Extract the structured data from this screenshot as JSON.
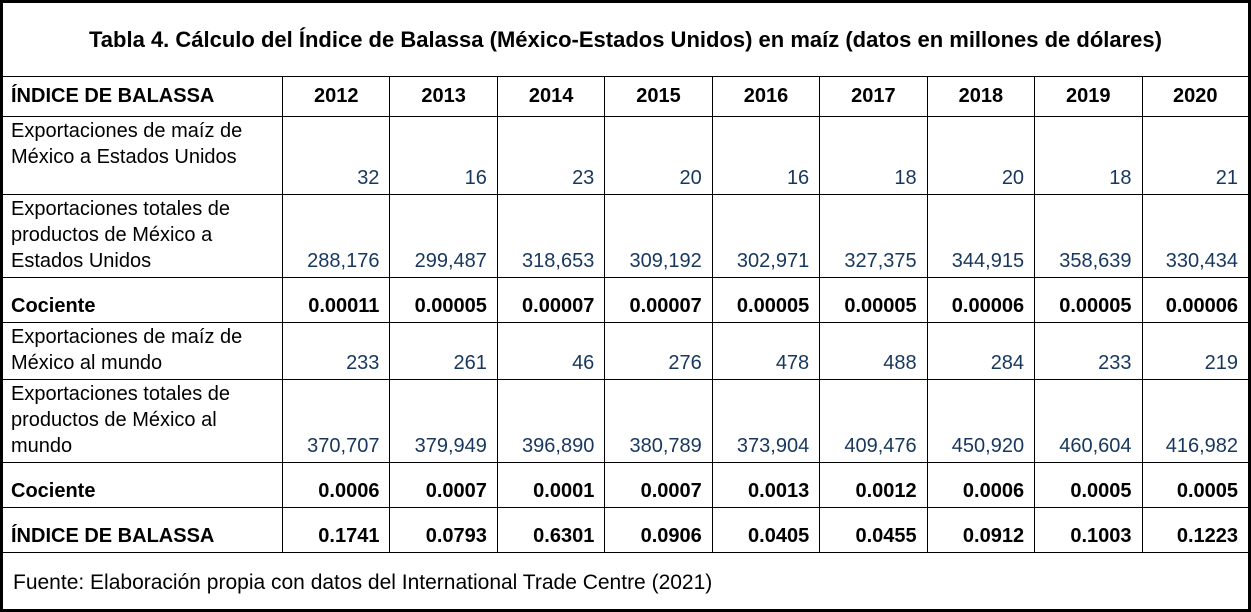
{
  "title": "Tabla 4. Cálculo del Índice de Balassa (México-Estados Unidos) en maíz (datos en millones de dólares)",
  "table": {
    "header": {
      "label": "ÍNDICE DE BALASSA",
      "years": [
        "2012",
        "2013",
        "2014",
        "2015",
        "2016",
        "2017",
        "2018",
        "2019",
        "2020"
      ]
    },
    "rows": [
      {
        "label": "Exportaciones de maíz de México a Estados Unidos",
        "style": "data",
        "values": [
          "32",
          "16",
          "23",
          "20",
          "16",
          "18",
          "20",
          "18",
          "21"
        ]
      },
      {
        "label": "Exportaciones totales de productos de México a Estados Unidos",
        "style": "data",
        "values": [
          "288,176",
          "299,487",
          "318,653",
          "309,192",
          "302,971",
          "327,375",
          "344,915",
          "358,639",
          "330,434"
        ]
      },
      {
        "label": "Cociente",
        "style": "bold",
        "values": [
          "0.00011",
          "0.00005",
          "0.00007",
          "0.00007",
          "0.00005",
          "0.00005",
          "0.00006",
          "0.00005",
          "0.00006"
        ]
      },
      {
        "label": "Exportaciones de maíz de México al mundo",
        "style": "data",
        "values": [
          "233",
          "261",
          "46",
          "276",
          "478",
          "488",
          "284",
          "233",
          "219"
        ]
      },
      {
        "label": "Exportaciones totales de productos de México al mundo",
        "style": "data",
        "values": [
          "370,707",
          "379,949",
          "396,890",
          "380,789",
          "373,904",
          "409,476",
          "450,920",
          "460,604",
          "416,982"
        ]
      },
      {
        "label": "Cociente",
        "style": "bold",
        "values": [
          "0.0006",
          "0.0007",
          "0.0001",
          "0.0007",
          "0.0013",
          "0.0012",
          "0.0006",
          "0.0005",
          "0.0005"
        ]
      },
      {
        "label": "ÍNDICE DE BALASSA",
        "style": "bold",
        "values": [
          "0.1741",
          "0.0793",
          "0.6301",
          "0.0906",
          "0.0405",
          "0.0455",
          "0.0912",
          "0.1003",
          "0.1223"
        ]
      }
    ],
    "source": "Fuente: Elaboración propia con datos del International Trade Centre (2021)"
  },
  "colors": {
    "value_blue": "#17375E",
    "border": "#000000",
    "text": "#000000",
    "background": "#FFFFFF"
  }
}
